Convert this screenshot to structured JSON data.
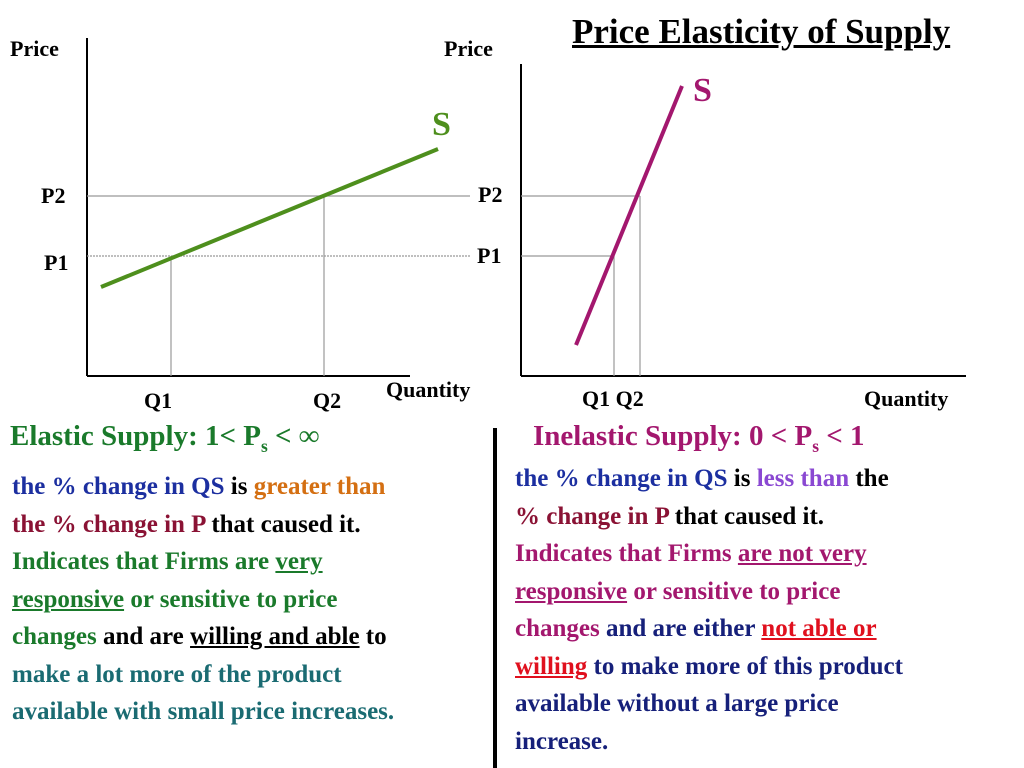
{
  "title": "Price Elasticity of Supply",
  "left_graph": {
    "y_axis_label": "Price",
    "x_axis_label": "Quantity",
    "curve_label": "S",
    "p2": "P2",
    "p1": "P1",
    "q1": "Q1",
    "q2": "Q2",
    "curve_color": "#4e8f1d"
  },
  "right_graph": {
    "y_axis_label": "Price",
    "x_axis_label": "Quantity",
    "curve_label": "S",
    "p2": "P2",
    "p1": "P1",
    "q1q2": "Q1 Q2",
    "curve_color": "#a3176e"
  },
  "elastic": {
    "heading_pre": "Elastic Supply:  1< P",
    "heading_sub": "s",
    "heading_post": " <  ∞",
    "l1a": "the % change in QS",
    "l1b": " is ",
    "l1c": "greater than",
    "l2a": "the % change in P",
    "l2b": "  that caused it.",
    "l3a": "Indicates that Firms are ",
    "l3b": "very",
    "l4a": "responsive",
    "l4b": " or sensitive to price",
    "l5a": "changes",
    "l5b": " and are ",
    "l5c": "willing and able",
    "l5d": " to",
    "l6": "make a lot more of the product",
    "l7": "available with small price increases."
  },
  "inelastic": {
    "heading_pre": "Inelastic Supply: 0 < P",
    "heading_sub": "s",
    "heading_post": " < 1",
    "l1a": "the % change in QS",
    "l1b": " is ",
    "l1c": "less than",
    "l1d": " the",
    "l2a": "% change in P",
    "l2b": " that caused it.",
    "l3a": "Indicates that Firms ",
    "l3b": "are not very",
    "l4a": "responsive",
    "l4b": " or sensitive to price",
    "l5a": "changes",
    "l5b": " and are either ",
    "l5c": "not able or",
    "l6a": "willing",
    "l6b": " to make more of this product",
    "l7": "available without a large price",
    "l8": "increase."
  }
}
